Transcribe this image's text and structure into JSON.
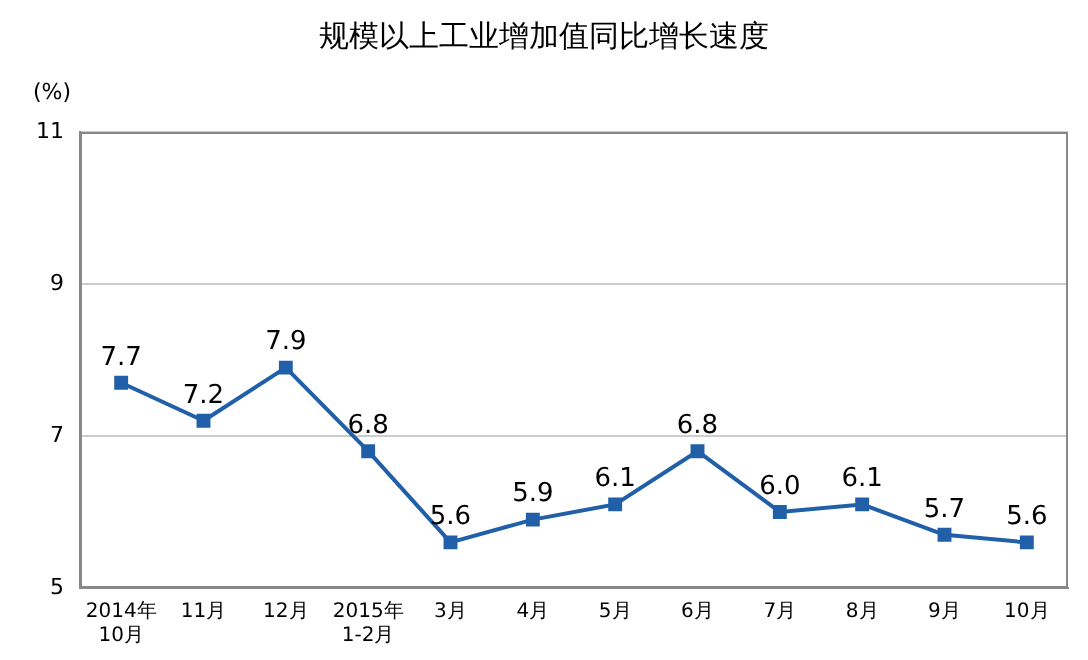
{
  "chart_data": {
    "type": "line",
    "title": "规模以上工业增加值同比增长速度",
    "ylabel": "(%)",
    "categories": [
      "2014年\n10月",
      "11月",
      "12月",
      "2015年\n1-2月",
      "3月",
      "4月",
      "5月",
      "6月",
      "7月",
      "8月",
      "9月",
      "10月"
    ],
    "series": [
      {
        "color": "#2160a8",
        "values": [
          7.7,
          7.2,
          7.9,
          6.8,
          5.6,
          5.9,
          6.1,
          6.8,
          6.0,
          6.1,
          5.7,
          5.6
        ],
        "value_labels": [
          "7.7",
          "7.2",
          "7.9",
          "6.8",
          "5.6",
          "5.9",
          "6.1",
          "6.8",
          "6.0",
          "6.1",
          "5.7",
          "5.6"
        ]
      }
    ],
    "ylim": [
      5,
      11
    ],
    "yticks": [
      5,
      7,
      9,
      11
    ],
    "grid": "y",
    "marker": "square",
    "line_style": "solid",
    "legend": false
  }
}
